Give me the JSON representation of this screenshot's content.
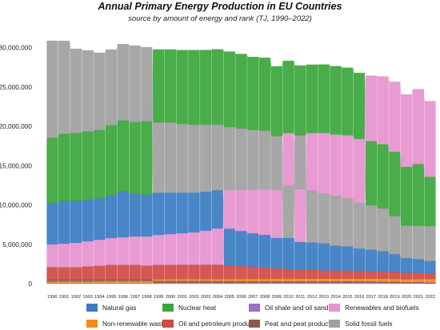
{
  "chart_data": {
    "type": "area",
    "title": "Annual Primary Energy Production in EU Countries",
    "subtitle": "source by amount of energy and rank (TJ, 1990–2022)",
    "xlabel": "",
    "ylabel": "",
    "ylim": [
      0,
      32000000
    ],
    "y_ticks": [
      0,
      5000000,
      10000000,
      15000000,
      20000000,
      25000000,
      30000000
    ],
    "y_tick_labels": [
      "0",
      "5,000,000",
      "10,000,000",
      "15,000,000",
      "20,000,000",
      "25,000,000",
      "30,000,000"
    ],
    "x": [
      1990,
      1991,
      1992,
      1993,
      1994,
      1995,
      1996,
      1997,
      1998,
      1999,
      2000,
      2001,
      2002,
      2003,
      2004,
      2005,
      2006,
      2007,
      2008,
      2009,
      2010,
      2011,
      2012,
      2013,
      2014,
      2015,
      2016,
      2017,
      2018,
      2019,
      2020,
      2021,
      2022
    ],
    "grid": false,
    "legend_position": "bottom",
    "note": "streams ranked by amount each year",
    "series": [
      {
        "key": "natural_gas",
        "name": "Natural gas",
        "color": "#3a7cc2",
        "values": [
          5300000,
          5500000,
          5400000,
          5300000,
          5300000,
          5500000,
          5900000,
          5500000,
          5400000,
          5400000,
          5300000,
          5200000,
          5100000,
          5000000,
          4900000,
          4700000,
          4500000,
          4300000,
          4200000,
          3900000,
          4000000,
          3600000,
          3500000,
          3500000,
          3200000,
          3100000,
          2900000,
          2800000,
          2600000,
          2300000,
          1900000,
          1800000,
          1600000
        ]
      },
      {
        "key": "nuclear_heat",
        "name": "Nuclear heat",
        "color": "#3aa63a",
        "values": [
          8300000,
          8500000,
          8600000,
          8700000,
          8700000,
          8900000,
          9000000,
          9100000,
          9300000,
          9300000,
          9300000,
          9400000,
          9500000,
          9500000,
          9600000,
          9600000,
          9500000,
          9300000,
          9300000,
          8900000,
          9200000,
          8900000,
          8700000,
          8700000,
          8700000,
          8600000,
          8400000,
          8200000,
          8200000,
          8200000,
          7500000,
          7900000,
          6300000
        ]
      },
      {
        "key": "oil_shale",
        "name": "Oil shale and oil sands",
        "color": "#9b6fc2",
        "values": [
          120000,
          120000,
          120000,
          110000,
          110000,
          110000,
          110000,
          100000,
          100000,
          100000,
          100000,
          100000,
          100000,
          100000,
          100000,
          100000,
          100000,
          100000,
          100000,
          100000,
          100000,
          100000,
          110000,
          120000,
          120000,
          120000,
          110000,
          110000,
          110000,
          100000,
          80000,
          90000,
          100000
        ]
      },
      {
        "key": "renewables",
        "name": "Renewables and biofuels",
        "color": "#e692cf",
        "values": [
          2900000,
          3000000,
          3100000,
          3200000,
          3300000,
          3400000,
          3500000,
          3600000,
          3700000,
          3800000,
          3900000,
          4000000,
          4100000,
          4300000,
          4600000,
          4900000,
          5200000,
          5500000,
          5800000,
          6100000,
          6700000,
          6700000,
          7300000,
          7700000,
          7800000,
          8000000,
          8100000,
          8300000,
          8600000,
          8900000,
          9200000,
          9500000,
          9600000
        ]
      },
      {
        "key": "non_renewable_waste",
        "name": "Non-renewable waste",
        "color": "#f28c1c",
        "values": [
          150000,
          160000,
          170000,
          180000,
          190000,
          200000,
          210000,
          220000,
          230000,
          240000,
          250000,
          260000,
          270000,
          280000,
          290000,
          300000,
          310000,
          320000,
          330000,
          340000,
          350000,
          350000,
          360000,
          360000,
          370000,
          370000,
          380000,
          380000,
          390000,
          390000,
          380000,
          390000,
          390000
        ]
      },
      {
        "key": "oil_products",
        "name": "Oil and petroleum products",
        "color": "#d04a43",
        "values": [
          1500000,
          1500000,
          1500000,
          1600000,
          1700000,
          1800000,
          1800000,
          1800000,
          1700000,
          1800000,
          1800000,
          1800000,
          1800000,
          1800000,
          1800000,
          1700000,
          1600000,
          1500000,
          1400000,
          1300000,
          1200000,
          1100000,
          1100000,
          1000000,
          1000000,
          1000000,
          950000,
          900000,
          900000,
          850000,
          800000,
          750000,
          720000
        ]
      },
      {
        "key": "peat",
        "name": "Peat and peat products",
        "color": "#8c5a4b",
        "values": [
          300000,
          280000,
          270000,
          260000,
          250000,
          250000,
          240000,
          240000,
          230000,
          230000,
          220000,
          220000,
          210000,
          210000,
          200000,
          200000,
          190000,
          190000,
          180000,
          180000,
          170000,
          170000,
          160000,
          160000,
          150000,
          150000,
          140000,
          140000,
          130000,
          120000,
          100000,
          100000,
          90000
        ]
      },
      {
        "key": "solid_fossil",
        "name": "Solid fossil fuels",
        "color": "#a0a0a0",
        "values": [
          12300000,
          11800000,
          10700000,
          10300000,
          9800000,
          9600000,
          9700000,
          9700000,
          9400000,
          8900000,
          8900000,
          8700000,
          8600000,
          8500000,
          8300000,
          8000000,
          7800000,
          7600000,
          7400000,
          6800000,
          6600000,
          6800000,
          6600000,
          6300000,
          6300000,
          6100000,
          5800000,
          5600000,
          5400000,
          4800000,
          4100000,
          4200000,
          4400000
        ]
      }
    ]
  },
  "legend": {
    "items": [
      {
        "label": "Natural gas",
        "color": "#3a7cc2"
      },
      {
        "label": "Nuclear heat",
        "color": "#3aa63a"
      },
      {
        "label": "Oil shale and oil sands",
        "color": "#9b6fc2"
      },
      {
        "label": "Renewables and biofuels",
        "color": "#e692cf"
      },
      {
        "label": "Non-renewable waste",
        "color": "#f28c1c"
      },
      {
        "label": "Oil and petroleum products",
        "color": "#d04a43"
      },
      {
        "label": "Peat and peat products",
        "color": "#8c5a4b"
      },
      {
        "label": "Solid fossil fuels",
        "color": "#a0a0a0"
      }
    ]
  }
}
